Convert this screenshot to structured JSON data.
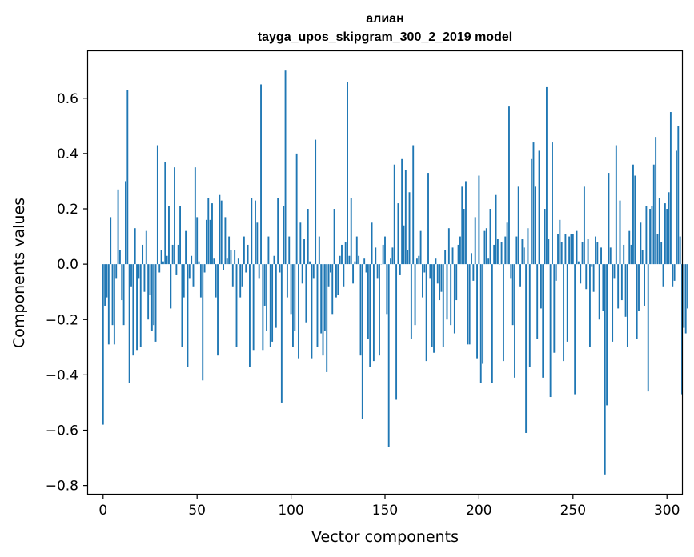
{
  "chart_data": {
    "type": "bar",
    "title": "алиан",
    "subtitle": "tayga_upos_skipgram_300_2_2019 model",
    "xlabel": "Vector components",
    "ylabel": "Components values",
    "xlim": [
      -8,
      308
    ],
    "ylim": [
      -0.83,
      0.77
    ],
    "xticks": [
      0,
      50,
      100,
      150,
      200,
      250,
      300
    ],
    "yticks": [
      -0.8,
      -0.6,
      -0.4,
      -0.2,
      0.0,
      0.2,
      0.4,
      0.6
    ],
    "ytick_labels": [
      "−0.8",
      "−0.6",
      "−0.4",
      "−0.2",
      "0.0",
      "0.2",
      "0.4",
      "0.6"
    ],
    "xtick_labels": [
      "0",
      "50",
      "100",
      "150",
      "200",
      "250",
      "300"
    ],
    "bar_color": "#1f77b4",
    "values": [
      -0.58,
      -0.15,
      -0.12,
      -0.29,
      0.17,
      -0.22,
      -0.29,
      -0.05,
      0.27,
      0.05,
      -0.13,
      -0.22,
      0.3,
      0.63,
      -0.43,
      -0.08,
      -0.33,
      0.13,
      -0.31,
      -0.05,
      -0.3,
      0.07,
      -0.1,
      0.12,
      -0.2,
      -0.11,
      -0.24,
      -0.22,
      -0.28,
      0.43,
      -0.03,
      0.05,
      0.01,
      0.37,
      0.03,
      0.21,
      -0.16,
      0.07,
      0.35,
      -0.04,
      0.07,
      0.21,
      -0.3,
      -0.12,
      0.12,
      -0.37,
      -0.05,
      0.03,
      -0.08,
      0.35,
      0.17,
      0.01,
      -0.12,
      -0.42,
      -0.03,
      0.16,
      0.24,
      0.16,
      0.22,
      0.02,
      -0.12,
      -0.33,
      0.25,
      0.23,
      -0.02,
      0.17,
      0.02,
      0.1,
      0.05,
      -0.08,
      0.05,
      -0.3,
      0.02,
      -0.12,
      -0.08,
      0.1,
      -0.03,
      0.07,
      -0.37,
      0.24,
      -0.31,
      0.23,
      0.15,
      -0.05,
      0.65,
      -0.31,
      -0.15,
      -0.24,
      0.1,
      -0.3,
      -0.28,
      0.03,
      -0.23,
      0.24,
      -0.03,
      -0.5,
      0.21,
      0.7,
      -0.12,
      0.1,
      -0.18,
      -0.3,
      -0.24,
      0.4,
      -0.34,
      0.15,
      -0.07,
      0.09,
      -0.21,
      0.2,
      0.01,
      -0.34,
      -0.05,
      0.45,
      -0.3,
      0.1,
      -0.25,
      -0.33,
      -0.24,
      -0.39,
      -0.08,
      -0.03,
      -0.18,
      0.2,
      -0.12,
      -0.11,
      0.03,
      0.07,
      -0.08,
      0.08,
      0.66,
      0.03,
      0.24,
      -0.07,
      0.01,
      0.1,
      0.03,
      -0.33,
      -0.56,
      0.02,
      -0.03,
      -0.27,
      -0.37,
      0.15,
      -0.35,
      0.06,
      -0.05,
      -0.33,
      0.0,
      0.07,
      0.1,
      -0.18,
      -0.66,
      0.02,
      0.06,
      0.36,
      -0.49,
      0.22,
      -0.04,
      0.38,
      0.14,
      0.34,
      0.05,
      0.26,
      -0.27,
      0.43,
      -0.22,
      0.02,
      0.03,
      0.12,
      -0.12,
      -0.03,
      -0.35,
      0.33,
      -0.05,
      -0.3,
      -0.32,
      0.02,
      -0.07,
      -0.13,
      -0.1,
      -0.3,
      0.05,
      -0.2,
      0.13,
      -0.22,
      0.06,
      -0.25,
      -0.13,
      0.07,
      0.1,
      0.28,
      0.2,
      0.3,
      -0.29,
      -0.29,
      0.04,
      -0.06,
      0.17,
      -0.34,
      0.32,
      -0.43,
      -0.36,
      0.12,
      0.13,
      0.02,
      0.2,
      -0.43,
      0.07,
      0.25,
      0.09,
      0.0,
      0.08,
      -0.35,
      0.1,
      0.15,
      0.57,
      -0.05,
      -0.22,
      -0.41,
      0.1,
      0.28,
      -0.08,
      0.09,
      0.06,
      -0.61,
      0.13,
      -0.37,
      0.38,
      0.44,
      0.28,
      -0.27,
      0.41,
      -0.16,
      -0.41,
      0.2,
      0.64,
      0.09,
      -0.48,
      0.44,
      -0.32,
      -0.06,
      0.11,
      0.16,
      0.08,
      -0.35,
      0.11,
      -0.28,
      0.1,
      0.11,
      0.11,
      -0.47,
      0.12,
      0.01,
      -0.07,
      0.08,
      0.28,
      -0.09,
      0.09,
      -0.3,
      -0.01,
      -0.1,
      0.1,
      0.08,
      -0.2,
      0.06,
      -0.17,
      -0.76,
      -0.51,
      0.33,
      0.06,
      -0.28,
      -0.05,
      0.43,
      -0.16,
      0.23,
      -0.13,
      0.07,
      -0.19,
      -0.3,
      0.12,
      0.07,
      0.36,
      0.32,
      -0.27,
      -0.17,
      0.15,
      0.05,
      -0.15,
      0.21,
      -0.46,
      0.2,
      0.21,
      0.36,
      0.46,
      0.11,
      0.24,
      0.08,
      -0.08,
      0.22,
      0.2,
      0.26,
      0.55,
      -0.08,
      -0.06,
      0.41,
      0.5,
      0.1,
      -0.47,
      -0.23,
      -0.25,
      -0.16
    ]
  }
}
